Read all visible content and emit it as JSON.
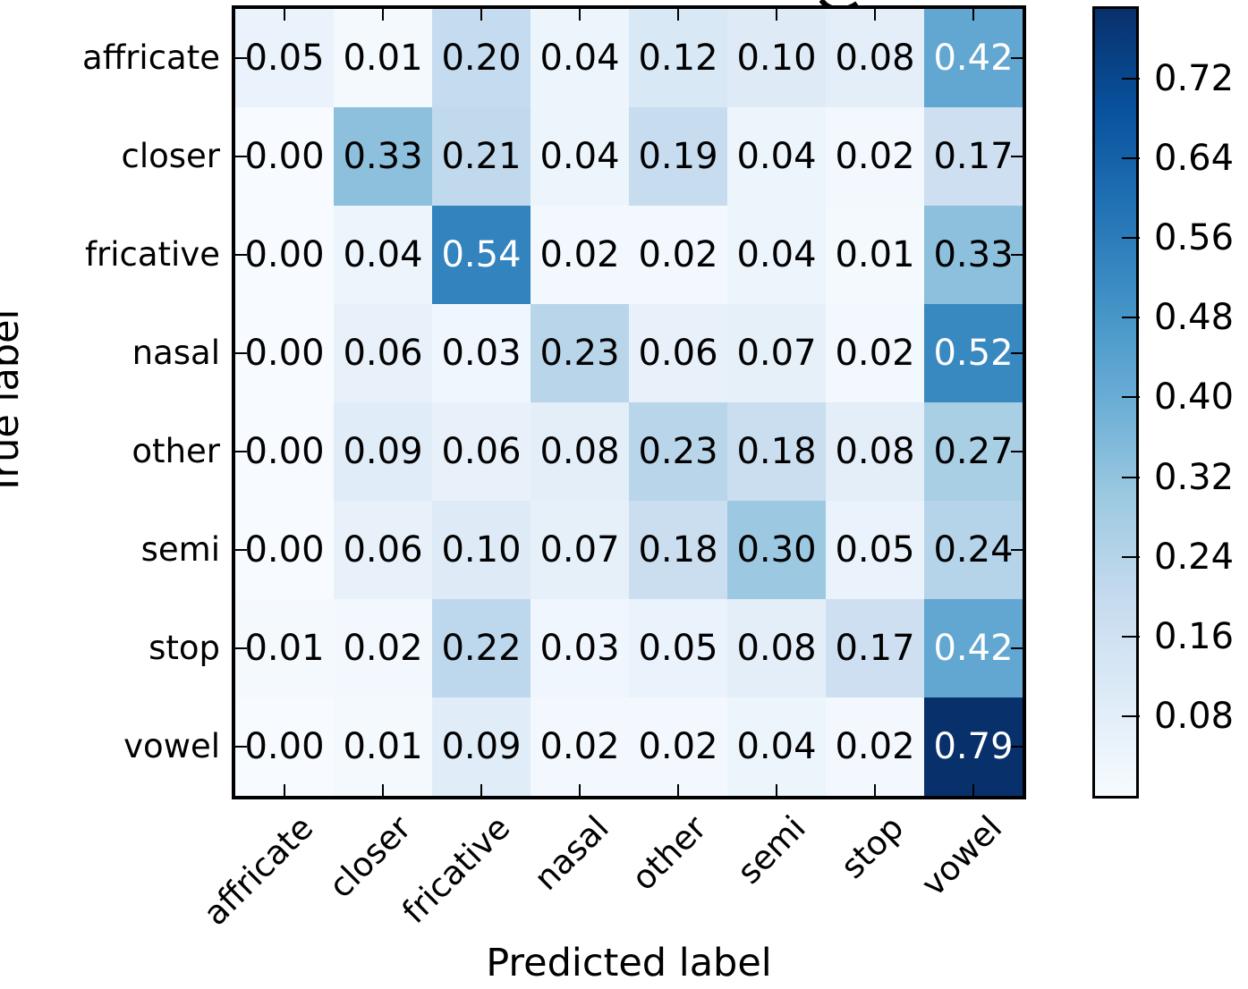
{
  "figure": {
    "xlabel": "Predicted label",
    "ylabel": "True label",
    "cropped_title_glyph": "y-descender-fragment"
  },
  "chart_data": {
    "type": "heatmap",
    "title": "",
    "xlabel": "Predicted label",
    "ylabel": "True label",
    "x_categories": [
      "affricate",
      "closer",
      "fricative",
      "nasal",
      "other",
      "semi",
      "stop",
      "vowel"
    ],
    "y_categories": [
      "affricate",
      "closer",
      "fricative",
      "nasal",
      "other",
      "semi",
      "stop",
      "vowel"
    ],
    "matrix": [
      [
        0.05,
        0.01,
        0.2,
        0.04,
        0.12,
        0.1,
        0.08,
        0.42
      ],
      [
        0.0,
        0.33,
        0.21,
        0.04,
        0.19,
        0.04,
        0.02,
        0.17
      ],
      [
        0.0,
        0.04,
        0.54,
        0.02,
        0.02,
        0.04,
        0.01,
        0.33
      ],
      [
        0.0,
        0.06,
        0.03,
        0.23,
        0.06,
        0.07,
        0.02,
        0.52
      ],
      [
        0.0,
        0.09,
        0.06,
        0.08,
        0.23,
        0.18,
        0.08,
        0.27
      ],
      [
        0.0,
        0.06,
        0.1,
        0.07,
        0.18,
        0.3,
        0.05,
        0.24
      ],
      [
        0.01,
        0.02,
        0.22,
        0.03,
        0.05,
        0.08,
        0.17,
        0.42
      ],
      [
        0.0,
        0.01,
        0.09,
        0.02,
        0.02,
        0.04,
        0.02,
        0.79
      ]
    ],
    "value_format_decimals": 2,
    "colormap": "Blues",
    "vmin": 0.0,
    "vmax": 0.79,
    "cell_text_white_above": 0.395,
    "colorbar_ticks": [
      0.72,
      0.64,
      0.56,
      0.48,
      0.4,
      0.32,
      0.24,
      0.16,
      0.08
    ],
    "legend_position": "right-colorbar",
    "grid": false
  },
  "colors": {
    "cmap_stops": [
      "#f7fbff",
      "#deebf7",
      "#c6dbef",
      "#9ecae1",
      "#6baed6",
      "#4292c6",
      "#2171b5",
      "#08519c",
      "#08306b"
    ],
    "axis": "#000000",
    "background": "#ffffff",
    "cell_text_dark": "#000000",
    "cell_text_light": "#ffffff"
  }
}
